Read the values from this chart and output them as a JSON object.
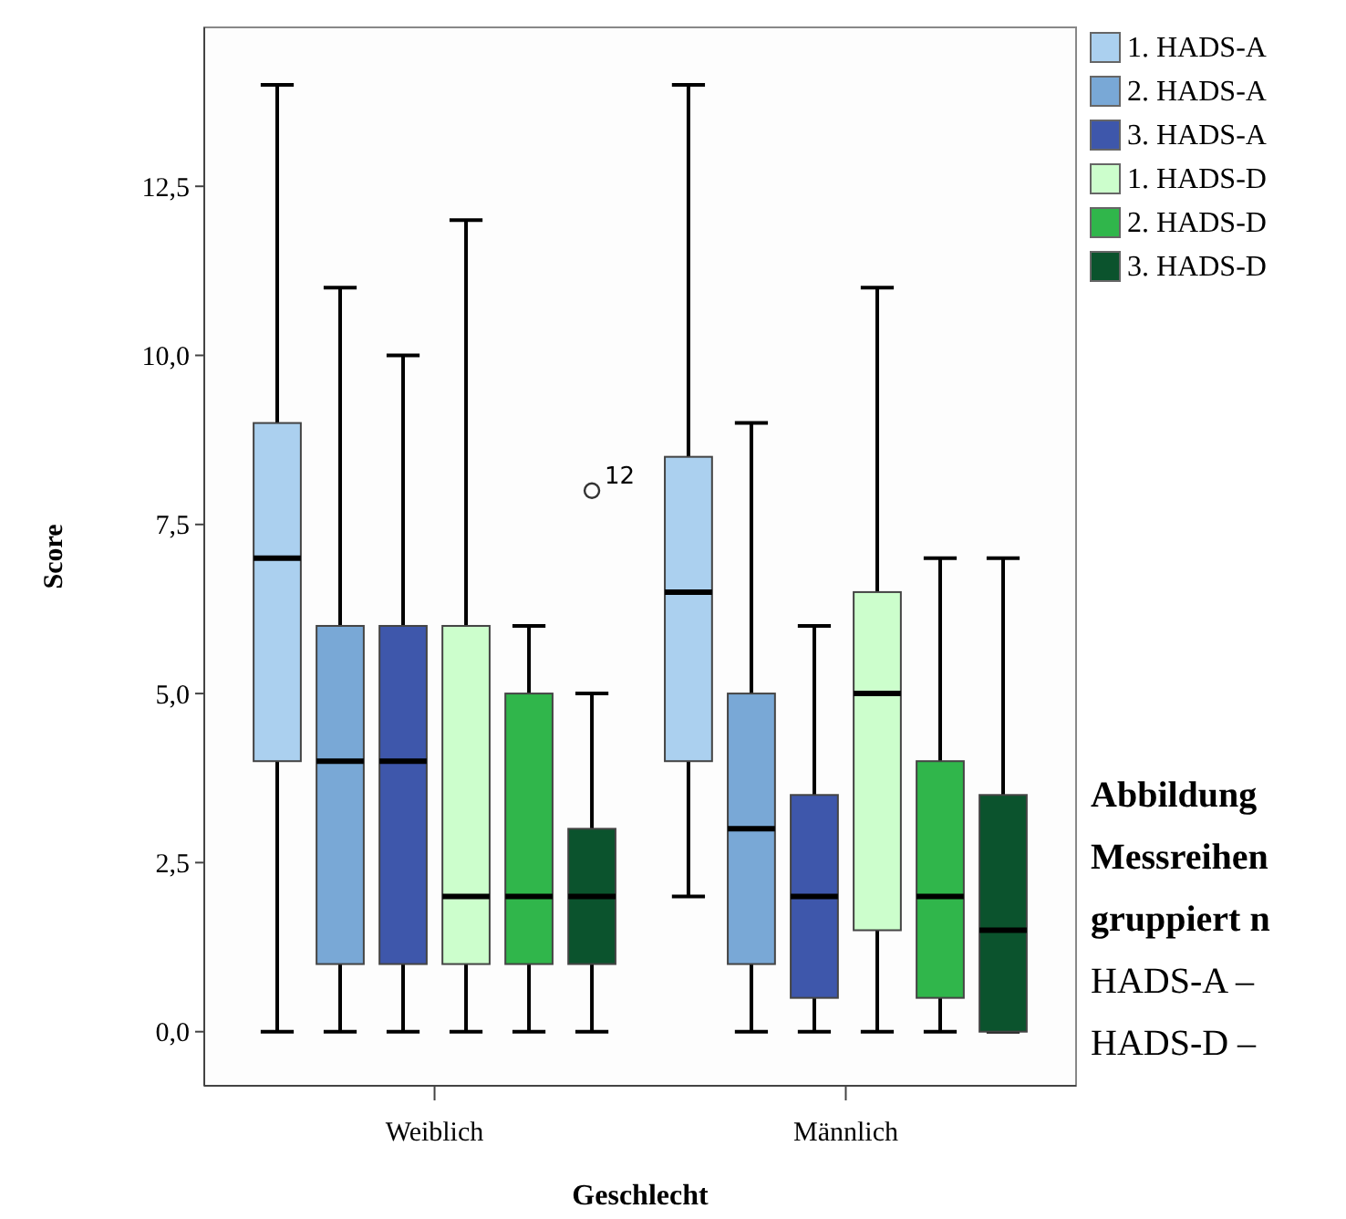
{
  "chart_data": {
    "type": "box",
    "xlabel": "Geschlecht",
    "ylabel": "Score",
    "categories": [
      "Weiblich",
      "Männlich"
    ],
    "ylim": [
      -0.8,
      14.85
    ],
    "yticks": [
      {
        "value": 0,
        "label": "0,0"
      },
      {
        "value": 2.5,
        "label": "2,5"
      },
      {
        "value": 5,
        "label": "5,0"
      },
      {
        "value": 7.5,
        "label": "7,5"
      },
      {
        "value": 10,
        "label": "10,0"
      },
      {
        "value": 12.5,
        "label": "12,5"
      }
    ],
    "grid": false,
    "legend": "right",
    "series": [
      {
        "name": "1. HADS-A",
        "color": "#abd0ef",
        "boxes": [
          {
            "low": 0,
            "q1": 4,
            "median": 7,
            "q3": 9,
            "high": 14
          },
          {
            "low": 2,
            "q1": 4,
            "median": 6.5,
            "q3": 8.5,
            "high": 14
          }
        ]
      },
      {
        "name": "2. HADS-A",
        "color": "#79a8d6",
        "boxes": [
          {
            "low": 0,
            "q1": 1,
            "median": 4,
            "q3": 6,
            "high": 11
          },
          {
            "low": 0,
            "q1": 1,
            "median": 3,
            "q3": 5,
            "high": 9
          }
        ]
      },
      {
        "name": "3. HADS-A",
        "color": "#3e57ab",
        "boxes": [
          {
            "low": 0,
            "q1": 1,
            "median": 4,
            "q3": 6,
            "high": 10
          },
          {
            "low": 0,
            "q1": 0.5,
            "median": 2,
            "q3": 3.5,
            "high": 6
          }
        ]
      },
      {
        "name": "1. HADS-D",
        "color": "#ccfecc",
        "boxes": [
          {
            "low": 0,
            "q1": 1,
            "median": 2,
            "q3": 6,
            "high": 12
          },
          {
            "low": 0,
            "q1": 1.5,
            "median": 5,
            "q3": 6.5,
            "high": 11
          }
        ]
      },
      {
        "name": "2. HADS-D",
        "color": "#30b64b",
        "boxes": [
          {
            "low": 0,
            "q1": 1,
            "median": 2,
            "q3": 5,
            "high": 6
          },
          {
            "low": 0,
            "q1": 0.5,
            "median": 2,
            "q3": 4,
            "high": 7
          }
        ]
      },
      {
        "name": "3. HADS-D",
        "color": "#0b532d",
        "boxes": [
          {
            "low": 0,
            "q1": 1,
            "median": 2,
            "q3": 3,
            "high": 5,
            "outliers": [
              8
            ]
          },
          {
            "low": 0,
            "q1": 0,
            "median": 1.5,
            "q3": 3.5,
            "high": 7
          }
        ]
      }
    ],
    "annotations": [
      "12",
      "Abbildung",
      "Messreihen",
      "gruppiert n",
      "HADS-A –",
      "HADS-D –"
    ]
  }
}
